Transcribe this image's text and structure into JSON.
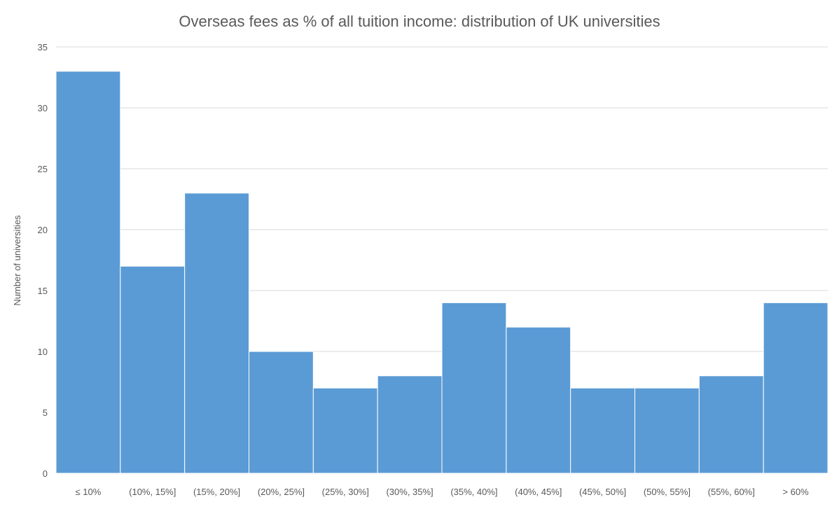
{
  "chart_data": {
    "type": "bar",
    "title": "Overseas fees as % of all tuition income: distribution of UK universities",
    "xlabel": "",
    "ylabel": "Number of universities",
    "categories": [
      "≤ 10%",
      "(10%, 15%]",
      "(15%, 20%]",
      "(20%, 25%]",
      "(25%, 30%]",
      "(30%, 35%]",
      "(35%, 40%]",
      "(40%, 45%]",
      "(45%, 50%]",
      "(50%, 55%]",
      "(55%, 60%]",
      "> 60%"
    ],
    "values": [
      33,
      17,
      23,
      10,
      7,
      8,
      14,
      12,
      7,
      7,
      8,
      14
    ],
    "ylim": [
      0,
      35
    ],
    "yticks": [
      "0",
      "5",
      "10",
      "15",
      "20",
      "25",
      "30",
      "35"
    ],
    "grid": true,
    "bar_color": "#5B9BD5"
  }
}
